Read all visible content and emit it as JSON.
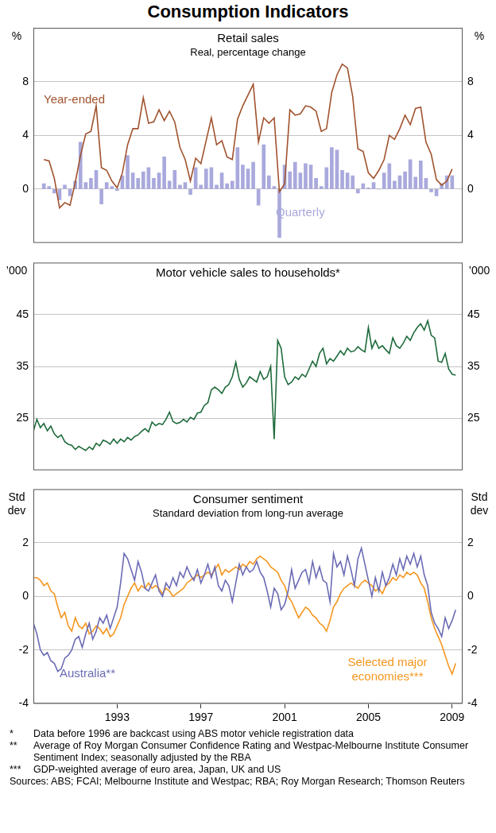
{
  "title": "Consumption Indicators",
  "notes": [
    {
      "mark": "*",
      "text": "Data before 1996 are backcast using ABS motor vehicle registration data"
    },
    {
      "mark": "**",
      "text": "Average of Roy Morgan Consumer Confidence Rating and Westpac-Melbourne Institute Consumer Sentiment Index; seasonally adjusted by the RBA"
    },
    {
      "mark": "***",
      "text": "GDP-weighted average of euro area, Japan, UK and US"
    }
  ],
  "sources": "Sources: ABS; FCAI; Melbourne Institute and Westpac; RBA; Roy Morgan Research; Thomson Reuters",
  "chart_data": [
    {
      "type": "line",
      "title": "Retail sales",
      "subtitle": "Real, percentage change",
      "ylabel": "%",
      "y2label": "%",
      "x": [
        1989.5,
        1989.75,
        1990,
        1990.25,
        1990.5,
        1990.75,
        1991,
        1991.25,
        1991.5,
        1991.75,
        1992,
        1992.25,
        1992.5,
        1992.75,
        1993,
        1993.25,
        1993.5,
        1993.75,
        1994,
        1994.25,
        1994.5,
        1994.75,
        1995,
        1995.25,
        1995.5,
        1995.75,
        1996,
        1996.25,
        1996.5,
        1996.75,
        1997,
        1997.25,
        1997.5,
        1997.75,
        1998,
        1998.25,
        1998.5,
        1998.75,
        1999,
        1999.25,
        1999.5,
        1999.75,
        2000,
        2000.25,
        2000.5,
        2000.75,
        2001,
        2001.25,
        2001.5,
        2001.75,
        2002,
        2002.25,
        2002.5,
        2002.75,
        2003,
        2003.25,
        2003.5,
        2003.75,
        2004,
        2004.25,
        2004.5,
        2004.75,
        2005,
        2005.25,
        2005.5,
        2005.75,
        2006,
        2006.25,
        2006.5,
        2006.75,
        2007,
        2007.25,
        2007.5,
        2007.75,
        2008,
        2008.25,
        2008.5,
        2008.75,
        2009
      ],
      "xlim": [
        1989,
        2009.5
      ],
      "ylim": [
        -4,
        12
      ],
      "yticks": [
        0,
        4,
        8
      ],
      "y2lim": [
        -4,
        12
      ],
      "y2ticks": [
        0,
        4,
        8
      ],
      "grid": true,
      "tick_labels": "y",
      "series": [
        {
          "name": "Year-ended",
          "color": "#a0522d",
          "values": [
            2.2,
            2.1,
            0.8,
            -1.4,
            -1.0,
            -1.2,
            0.5,
            2.5,
            4.1,
            4.3,
            6.2,
            1.6,
            1.4,
            0.6,
            0.1,
            1.2,
            3.3,
            4.5,
            4.5,
            6.8,
            4.9,
            5.0,
            5.9,
            5.1,
            5.8,
            5.0,
            3.1,
            2.2,
            0.6,
            2.3,
            1.9,
            3.6,
            5.3,
            3.3,
            3.6,
            2.4,
            2.2,
            5.2,
            6.2,
            7.0,
            7.8,
            3.5,
            5.3,
            4.9,
            5.3,
            -0.2,
            0.4,
            5.9,
            5.5,
            5.6,
            6.2,
            6.1,
            5.8,
            4.3,
            4.5,
            7.2,
            8.5,
            9.3,
            9.0,
            6.9,
            3.0,
            2.8,
            1.2,
            0.8,
            1.4,
            2.2,
            4.0,
            3.7,
            4.5,
            5.5,
            4.8,
            6.0,
            6.1,
            3.5,
            2.6,
            0.7,
            0.3,
            0.6,
            1.5
          ]
        },
        {
          "name": "Quarterly",
          "type": "bar",
          "color": "#a9a9dd",
          "values": [
            0.4,
            0.2,
            -0.3,
            -0.8,
            0.3,
            -0.5,
            0.6,
            3.5,
            0.5,
            0.8,
            1.4,
            -1.1,
            0.5,
            0.2,
            -0.1,
            1.0,
            2.5,
            1.2,
            0.8,
            1.3,
            1.6,
            0.8,
            1.2,
            2.4,
            0.6,
            1.4,
            0.3,
            0.5,
            -0.4,
            1.6,
            0.3,
            1.5,
            1.6,
            0.3,
            1.2,
            0.4,
            0.6,
            3.1,
            1.8,
            1.5,
            2.0,
            -1.2,
            3.3,
            1.0,
            0.2,
            -3.6,
            1.8,
            1.3,
            2.0,
            1.2,
            1.9,
            1.8,
            0.8,
            0.2,
            1.6,
            3.1,
            2.9,
            1.4,
            1.2,
            1.0,
            -0.3,
            0.4,
            0.1,
            0.5,
            0.0,
            1.2,
            1.9,
            0.6,
            1.0,
            1.3,
            2.2,
            0.9,
            2.1,
            0.8,
            -0.2,
            -0.5,
            0.4,
            1.0,
            1.0
          ]
        }
      ]
    },
    {
      "type": "line",
      "title": "Motor vehicle sales to households*",
      "ylabel": "’000",
      "y2label": "’000",
      "x": [
        1989,
        1989.167,
        1989.333,
        1989.5,
        1989.667,
        1989.833,
        1990,
        1990.167,
        1990.333,
        1990.5,
        1990.667,
        1990.833,
        1991,
        1991.167,
        1991.333,
        1991.5,
        1991.667,
        1991.833,
        1992,
        1992.167,
        1992.333,
        1992.5,
        1992.667,
        1992.833,
        1993,
        1993.167,
        1993.333,
        1993.5,
        1993.667,
        1993.833,
        1994,
        1994.167,
        1994.333,
        1994.5,
        1994.667,
        1994.833,
        1995,
        1995.167,
        1995.333,
        1995.5,
        1995.667,
        1995.833,
        1996,
        1996.167,
        1996.333,
        1996.5,
        1996.667,
        1996.833,
        1997,
        1997.167,
        1997.333,
        1997.5,
        1997.667,
        1997.833,
        1998,
        1998.167,
        1998.333,
        1998.5,
        1998.667,
        1998.833,
        1999,
        1999.167,
        1999.333,
        1999.5,
        1999.667,
        1999.833,
        2000,
        2000.167,
        2000.333,
        2000.5,
        2000.667,
        2000.833,
        2001,
        2001.167,
        2001.333,
        2001.5,
        2001.667,
        2001.833,
        2002,
        2002.167,
        2002.333,
        2002.5,
        2002.667,
        2002.833,
        2003,
        2003.167,
        2003.333,
        2003.5,
        2003.667,
        2003.833,
        2004,
        2004.167,
        2004.333,
        2004.5,
        2004.667,
        2004.833,
        2005,
        2005.167,
        2005.333,
        2005.5,
        2005.667,
        2005.833,
        2006,
        2006.167,
        2006.333,
        2006.5,
        2006.667,
        2006.833,
        2007,
        2007.167,
        2007.333,
        2007.5,
        2007.667,
        2007.833,
        2008,
        2008.167,
        2008.333,
        2008.5,
        2008.667,
        2008.833,
        2009,
        2009.167
      ],
      "xlim": [
        1989,
        2009.5
      ],
      "ylim": [
        15,
        55
      ],
      "yticks": [
        25,
        35,
        45
      ],
      "y2lim": [
        15,
        55
      ],
      "y2ticks": [
        25,
        35,
        45
      ],
      "grid": true,
      "tick_labels": "y",
      "color": "#1e6b3c",
      "values": [
        22.5,
        24.8,
        23.2,
        24.0,
        22.6,
        23.5,
        22.0,
        21.3,
        21.8,
        20.5,
        20.0,
        19.8,
        19.0,
        19.6,
        19.2,
        18.8,
        19.5,
        19.0,
        20.2,
        19.7,
        20.8,
        20.5,
        20.0,
        21.0,
        20.2,
        21.0,
        20.5,
        21.3,
        20.8,
        21.5,
        21.8,
        22.5,
        23.0,
        22.4,
        24.3,
        23.6,
        24.0,
        23.8,
        24.8,
        26.2,
        24.4,
        24.0,
        24.2,
        24.8,
        24.3,
        25.2,
        24.8,
        26.0,
        26.2,
        27.5,
        28.0,
        30.5,
        31.0,
        30.5,
        29.8,
        31.0,
        31.5,
        33.0,
        35.8,
        32.5,
        31.0,
        31.8,
        33.0,
        32.5,
        32.0,
        34.0,
        32.5,
        33.0,
        35.0,
        21.0,
        40.0,
        38.5,
        33.0,
        31.5,
        32.0,
        33.0,
        32.5,
        33.5,
        33.0,
        34.5,
        36.0,
        35.0,
        37.5,
        38.5,
        35.5,
        36.5,
        36.0,
        37.0,
        38.0,
        37.2,
        38.5,
        37.8,
        38.0,
        38.8,
        38.2,
        37.8,
        42.5,
        38.5,
        40.0,
        38.5,
        39.0,
        38.2,
        37.5,
        40.5,
        39.0,
        38.5,
        39.5,
        40.8,
        40.0,
        41.5,
        42.5,
        43.2,
        42.0,
        43.8,
        41.0,
        40.5,
        36.0,
        35.8,
        37.5,
        34.5,
        33.5,
        33.3
      ]
    },
    {
      "type": "line",
      "title": "Consumer sentiment",
      "subtitle": "Standard deviation from long-run average",
      "ylabel": "Std dev",
      "y2label": "Std dev",
      "x": [
        1989,
        1989.167,
        1989.333,
        1989.5,
        1989.667,
        1989.833,
        1990,
        1990.167,
        1990.333,
        1990.5,
        1990.667,
        1990.833,
        1991,
        1991.167,
        1991.333,
        1991.5,
        1991.667,
        1991.833,
        1992,
        1992.167,
        1992.333,
        1992.5,
        1992.667,
        1992.833,
        1993,
        1993.167,
        1993.333,
        1993.5,
        1993.667,
        1993.833,
        1994,
        1994.167,
        1994.333,
        1994.5,
        1994.667,
        1994.833,
        1995,
        1995.167,
        1995.333,
        1995.5,
        1995.667,
        1995.833,
        1996,
        1996.167,
        1996.333,
        1996.5,
        1996.667,
        1996.833,
        1997,
        1997.167,
        1997.333,
        1997.5,
        1997.667,
        1997.833,
        1998,
        1998.167,
        1998.333,
        1998.5,
        1998.667,
        1998.833,
        1999,
        1999.167,
        1999.333,
        1999.5,
        1999.667,
        1999.833,
        2000,
        2000.167,
        2000.333,
        2000.5,
        2000.667,
        2000.833,
        2001,
        2001.167,
        2001.333,
        2001.5,
        2001.667,
        2001.833,
        2002,
        2002.167,
        2002.333,
        2002.5,
        2002.667,
        2002.833,
        2003,
        2003.167,
        2003.333,
        2003.5,
        2003.667,
        2003.833,
        2004,
        2004.167,
        2004.333,
        2004.5,
        2004.667,
        2004.833,
        2005,
        2005.167,
        2005.333,
        2005.5,
        2005.667,
        2005.833,
        2006,
        2006.167,
        2006.333,
        2006.5,
        2006.667,
        2006.833,
        2007,
        2007.167,
        2007.333,
        2007.5,
        2007.667,
        2007.833,
        2008,
        2008.167,
        2008.333,
        2008.5,
        2008.667,
        2008.833,
        2009,
        2009.167
      ],
      "xlim": [
        1989,
        2009.5
      ],
      "xticks": [
        1993,
        1997,
        2001,
        2005,
        2009
      ],
      "ylim": [
        -4,
        4
      ],
      "yticks": [
        -4,
        -2,
        0,
        2
      ],
      "y2lim": [
        -4,
        4
      ],
      "y2ticks": [
        -4,
        -2,
        0,
        2
      ],
      "grid": true,
      "series": [
        {
          "name": "Australia**",
          "color": "#6b6bb5",
          "values": [
            -1.0,
            -1.4,
            -2.0,
            -2.2,
            -2.1,
            -2.4,
            -2.5,
            -2.8,
            -2.7,
            -2.3,
            -2.2,
            -2.0,
            -1.6,
            -1.5,
            -1.9,
            -1.4,
            -1.0,
            -1.6,
            -1.3,
            -0.8,
            -1.0,
            -0.7,
            -1.2,
            -0.8,
            -0.4,
            0.5,
            1.6,
            1.4,
            1.0,
            0.6,
            1.3,
            0.9,
            0.3,
            0.2,
            0.5,
            0.8,
            0.2,
            0.0,
            0.5,
            0.3,
            0.7,
            0.4,
            0.9,
            0.7,
            1.1,
            0.8,
            0.6,
            1.0,
            0.5,
            0.8,
            1.2,
            0.7,
            1.1,
            0.4,
            0.2,
            0.6,
            0.4,
            -0.2,
            0.5,
            1.2,
            0.8,
            1.1,
            0.9,
            1.0,
            1.3,
            0.9,
            0.7,
            0.2,
            -0.4,
            0.3,
            0.1,
            -0.5,
            -0.3,
            0.2,
            1.0,
            0.3,
            0.6,
            0.9,
            1.0,
            0.5,
            1.3,
            0.7,
            1.1,
            0.6,
            0.5,
            -0.2,
            1.6,
            1.1,
            1.3,
            0.8,
            1.5,
            1.0,
            0.4,
            1.4,
            1.8,
            1.2,
            0.6,
            0.0,
            0.7,
            0.2,
            0.9,
            0.4,
            0.7,
            1.2,
            0.8,
            1.4,
            1.0,
            1.5,
            1.2,
            1.6,
            1.1,
            1.5,
            0.8,
            0.4,
            -0.6,
            -1.0,
            -1.2,
            -1.5,
            -0.8,
            -1.2,
            -0.9,
            -0.5
          ]
        },
        {
          "name": "Selected major economies***",
          "color": "#f5961e",
          "values": [
            0.7,
            0.7,
            0.6,
            0.4,
            0.5,
            0.2,
            0.1,
            -0.4,
            -0.8,
            -0.6,
            -1.1,
            -1.3,
            -0.8,
            -1.1,
            -1.2,
            -1.0,
            -1.4,
            -1.3,
            -1.1,
            -1.2,
            -1.4,
            -1.2,
            -1.5,
            -1.4,
            -1.1,
            -0.8,
            -0.3,
            0.0,
            0.3,
            0.5,
            0.2,
            0.4,
            0.3,
            0.5,
            0.3,
            0.4,
            0.3,
            0.1,
            0.3,
            0.2,
            0.0,
            0.1,
            0.2,
            0.3,
            0.5,
            0.6,
            0.7,
            0.8,
            0.7,
            0.8,
            0.9,
            0.8,
            1.0,
            1.2,
            0.8,
            1.0,
            0.9,
            1.0,
            1.1,
            1.0,
            1.2,
            1.1,
            1.3,
            1.2,
            1.4,
            1.5,
            1.4,
            1.3,
            1.1,
            1.0,
            0.9,
            0.6,
            0.4,
            0.0,
            -0.2,
            -0.5,
            -0.8,
            -0.6,
            -0.4,
            -0.5,
            -0.7,
            -0.8,
            -1.0,
            -1.1,
            -1.3,
            -0.9,
            -0.4,
            -0.2,
            0.1,
            0.3,
            0.4,
            0.5,
            0.4,
            0.3,
            0.5,
            0.6,
            0.5,
            0.4,
            0.2,
            0.3,
            0.1,
            0.4,
            0.5,
            0.7,
            0.6,
            0.8,
            0.7,
            0.9,
            0.8,
            0.9,
            0.8,
            0.5,
            0.3,
            -0.2,
            -0.8,
            -1.2,
            -1.5,
            -1.8,
            -2.2,
            -2.6,
            -2.9,
            -2.5
          ]
        }
      ]
    }
  ]
}
